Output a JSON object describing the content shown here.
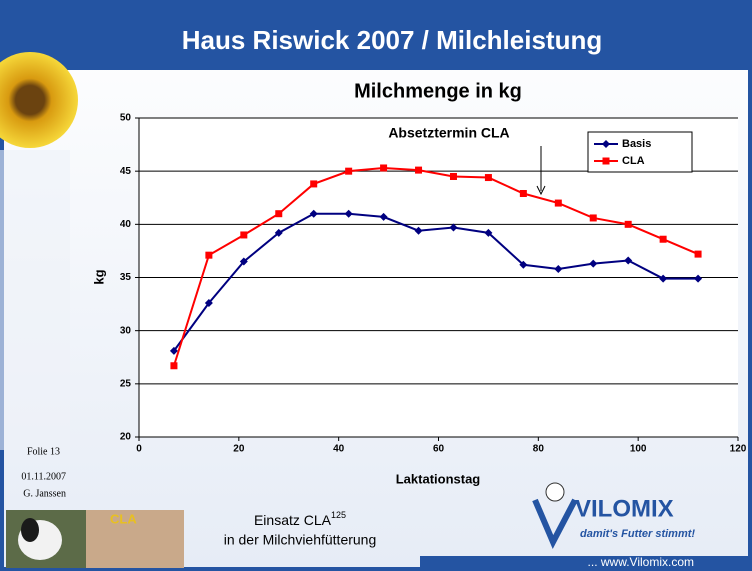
{
  "slide": {
    "title": "Haus Riswick 2007 / Milchleistung",
    "slide_number": "Folie 13",
    "date": "01.11.2007",
    "author": "G. Janssen",
    "caption_line1": "Einsatz CLA",
    "caption_sup": "125",
    "caption_line2": "in der Milchviehfütterung",
    "logo": "VILOMIX",
    "slogan": "damit's Futter stimmt!",
    "url": "... www.Vilomix.com",
    "photo_label": "CLA"
  },
  "chart_data": {
    "type": "line",
    "title": "Milchmenge in kg",
    "x_label": "Laktationstag",
    "y_label": "kg",
    "annotation": "Absetztermin CLA",
    "x": [
      7,
      14,
      21,
      28,
      35,
      42,
      49,
      56,
      63,
      70,
      77,
      84,
      91,
      98,
      105,
      112
    ],
    "series": [
      {
        "name": "Basis",
        "color": "#000080",
        "marker": "diamond",
        "values": [
          28.1,
          32.6,
          36.5,
          39.2,
          41.0,
          41.0,
          40.7,
          39.4,
          39.7,
          39.2,
          36.2,
          35.8,
          36.3,
          36.6,
          34.9,
          34.9
        ]
      },
      {
        "name": "CLA",
        "color": "#ff0000",
        "marker": "square",
        "values": [
          26.7,
          37.1,
          39.0,
          41.0,
          43.8,
          45.0,
          45.3,
          45.1,
          44.5,
          44.4,
          42.9,
          42.0,
          40.6,
          40.0,
          38.6,
          37.2
        ]
      }
    ],
    "xlim": [
      0,
      120
    ],
    "xticks": [
      0,
      20,
      40,
      60,
      80,
      100,
      120
    ],
    "ylim": [
      20,
      50
    ],
    "yticks": [
      20,
      25,
      30,
      35,
      40,
      45,
      50
    ],
    "grid": true,
    "legend": "upper right"
  }
}
